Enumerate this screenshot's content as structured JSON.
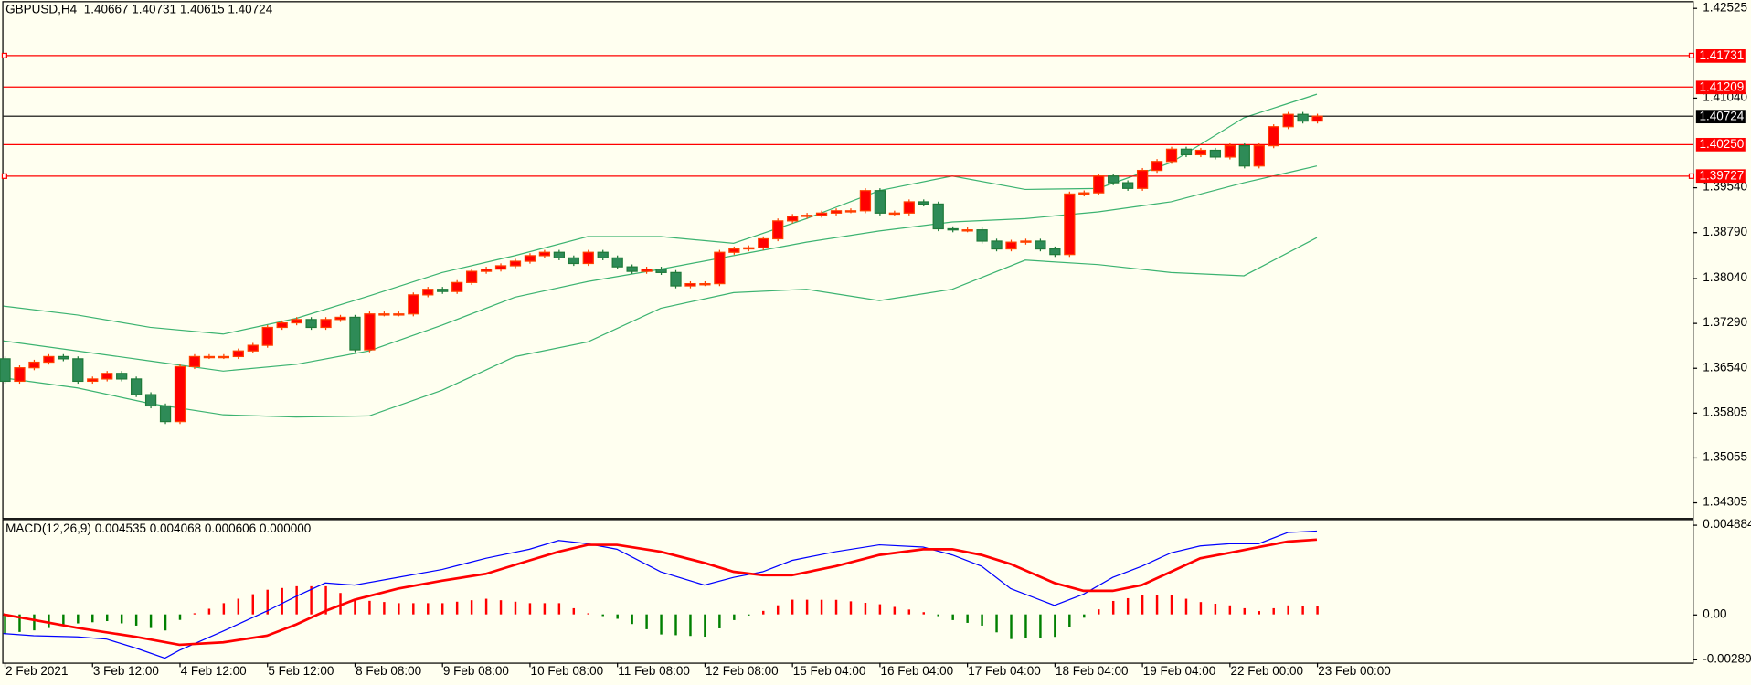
{
  "header": {
    "symbol": "GBPUSD,H4",
    "open": "1.40667",
    "high": "1.40731",
    "low": "1.40615",
    "close": "1.40724"
  },
  "macd_header": {
    "label": "MACD(12,26,9)",
    "v1": "0.004535",
    "v2": "0.004068",
    "v3": "0.000606",
    "v4": "0.000000"
  },
  "colors": {
    "background": "#fffff0",
    "bull": "#ff0000",
    "bull_border": "#ff4000",
    "bear": "#2e8b57",
    "bear_border": "#1f7a3a",
    "bands": "#3cb371",
    "macd": "#0000ff",
    "signal": "#ff0000",
    "level": "#ff0000"
  },
  "price_axis": [
    "1.42525",
    "1.41040",
    "1.39540",
    "1.38790",
    "1.38040",
    "1.37290",
    "1.36540",
    "1.35805",
    "1.35055",
    "1.34305"
  ],
  "levels": [
    {
      "price": "1.41731",
      "marked": true
    },
    {
      "price": "1.41209",
      "marked": false
    },
    {
      "price": "1.40250",
      "marked": false
    },
    {
      "price": "1.39727",
      "marked": true
    }
  ],
  "current_price": "1.40724",
  "macd_axis": [
    "0.004884",
    "0.00",
    "-0.002802"
  ],
  "time_axis": [
    "2 Feb 2021",
    "3 Feb 12:00",
    "4 Feb 12:00",
    "5 Feb 12:00",
    "8 Feb 08:00",
    "9 Feb 08:00",
    "10 Feb 08:00",
    "11 Feb 08:00",
    "12 Feb 08:00",
    "15 Feb 04:00",
    "16 Feb 04:00",
    "17 Feb 04:00",
    "18 Feb 04:00",
    "19 Feb 04:00",
    "22 Feb 00:00",
    "23 Feb 00:00"
  ],
  "chart_data": {
    "type": "candlestick",
    "timeframe": "H4",
    "first_open": 1.3669,
    "closes": [
      1.36317,
      1.36541,
      1.36634,
      1.36727,
      1.3669,
      1.36317,
      1.36355,
      1.36448,
      1.36355,
      1.36094,
      1.35907,
      1.35646,
      1.3656,
      1.36727,
      1.36727,
      1.36727,
      1.36821,
      1.36914,
      1.37212,
      1.37287,
      1.37343,
      1.37212,
      1.37343,
      1.3738,
      1.36839,
      1.37436,
      1.37436,
      1.37436,
      1.37753,
      1.37846,
      1.37809,
      1.37958,
      1.38144,
      1.38181,
      1.38237,
      1.38312,
      1.38405,
      1.38461,
      1.38368,
      1.38275,
      1.38461,
      1.38368,
      1.38219,
      1.38144,
      1.38181,
      1.38125,
      1.37902,
      1.37939,
      1.37939,
      1.38461,
      1.38517,
      1.38536,
      1.38685,
      1.38983,
      1.39057,
      1.39076,
      1.39113,
      1.39151,
      1.39151,
      1.39486,
      1.39113,
      1.39113,
      1.393,
      1.39263,
      1.38852,
      1.38834,
      1.38834,
      1.38647,
      1.38517,
      1.38629,
      1.38647,
      1.38517,
      1.38424,
      1.3943,
      1.39449,
      1.39729,
      1.39617,
      1.39523,
      1.39822,
      1.39971,
      1.40176,
      1.40083,
      1.40157,
      1.40045,
      1.40232,
      1.39896,
      1.40232,
      1.40549,
      1.40754,
      1.40642,
      1.40724
    ],
    "bands_bar_index": [
      0,
      5,
      10,
      15,
      20,
      25,
      30,
      35,
      40,
      45,
      50,
      55,
      60,
      65,
      70,
      75,
      80,
      85,
      90
    ],
    "bb_upper": [
      1.37566,
      1.37417,
      1.37212,
      1.371,
      1.37361,
      1.37734,
      1.38125,
      1.38405,
      1.38722,
      1.38722,
      1.3861,
      1.3902,
      1.39486,
      1.39729,
      1.39505,
      1.39523,
      1.39952,
      1.40698,
      1.41089
    ],
    "bb_middle": [
      1.36988,
      1.36821,
      1.36653,
      1.36485,
      1.36597,
      1.36821,
      1.37249,
      1.37715,
      1.37976,
      1.38181,
      1.38405,
      1.38629,
      1.38815,
      1.38964,
      1.3902,
      1.39132,
      1.393,
      1.39617,
      1.39896
    ],
    "bb_lower": [
      1.36373,
      1.36206,
      1.35945,
      1.35758,
      1.35721,
      1.3574,
      1.36168,
      1.36727,
      1.3697,
      1.37529,
      1.3779,
      1.37846,
      1.37659,
      1.37846,
      1.38331,
      1.38256,
      1.38125,
      1.3807,
      1.38703
    ],
    "macd_points": [
      [
        0,
        -0.00104
      ],
      [
        2,
        -0.00116
      ],
      [
        5,
        -0.00122
      ],
      [
        7,
        -0.00134
      ],
      [
        9,
        -0.00183
      ],
      [
        11,
        -0.00238
      ],
      [
        12,
        -0.00195
      ],
      [
        15,
        -0.00091
      ],
      [
        18,
        0.00018
      ],
      [
        20,
        0.00098
      ],
      [
        22,
        0.00171
      ],
      [
        24,
        0.00159
      ],
      [
        27,
        0.00201
      ],
      [
        30,
        0.00244
      ],
      [
        33,
        0.00305
      ],
      [
        36,
        0.00354
      ],
      [
        38,
        0.00402
      ],
      [
        40,
        0.00384
      ],
      [
        42,
        0.00354
      ],
      [
        45,
        0.00232
      ],
      [
        48,
        0.00159
      ],
      [
        50,
        0.00201
      ],
      [
        52,
        0.00232
      ],
      [
        54,
        0.00293
      ],
      [
        57,
        0.00341
      ],
      [
        60,
        0.00378
      ],
      [
        63,
        0.00366
      ],
      [
        65,
        0.00323
      ],
      [
        67,
        0.00262
      ],
      [
        69,
        0.0014
      ],
      [
        72,
        0.00049
      ],
      [
        74,
        0.0011
      ],
      [
        76,
        0.00201
      ],
      [
        78,
        0.00262
      ],
      [
        80,
        0.00335
      ],
      [
        82,
        0.00372
      ],
      [
        84,
        0.00384
      ],
      [
        86,
        0.00384
      ],
      [
        88,
        0.00445
      ],
      [
        90,
        0.00453
      ]
    ],
    "signal_points": [
      [
        0,
        0
      ],
      [
        5,
        -0.00073
      ],
      [
        9,
        -0.00122
      ],
      [
        12,
        -0.00165
      ],
      [
        15,
        -0.00152
      ],
      [
        18,
        -0.00116
      ],
      [
        20,
        -0.00055
      ],
      [
        22,
        0.00018
      ],
      [
        24,
        0.00079
      ],
      [
        27,
        0.0014
      ],
      [
        30,
        0.00183
      ],
      [
        33,
        0.0022
      ],
      [
        36,
        0.00293
      ],
      [
        38,
        0.00341
      ],
      [
        40,
        0.00378
      ],
      [
        42,
        0.00378
      ],
      [
        45,
        0.00341
      ],
      [
        48,
        0.0028
      ],
      [
        50,
        0.00232
      ],
      [
        52,
        0.00213
      ],
      [
        54,
        0.00213
      ],
      [
        57,
        0.00262
      ],
      [
        60,
        0.00323
      ],
      [
        63,
        0.00354
      ],
      [
        65,
        0.00354
      ],
      [
        67,
        0.00323
      ],
      [
        69,
        0.00274
      ],
      [
        72,
        0.00171
      ],
      [
        74,
        0.00128
      ],
      [
        76,
        0.00128
      ],
      [
        78,
        0.00159
      ],
      [
        80,
        0.00232
      ],
      [
        82,
        0.00305
      ],
      [
        84,
        0.00335
      ],
      [
        86,
        0.00366
      ],
      [
        88,
        0.00396
      ],
      [
        90,
        0.00407
      ]
    ],
    "price_range": [
      1.34305,
      1.42525
    ],
    "macd_range": [
      -0.002802,
      0.004884
    ]
  }
}
